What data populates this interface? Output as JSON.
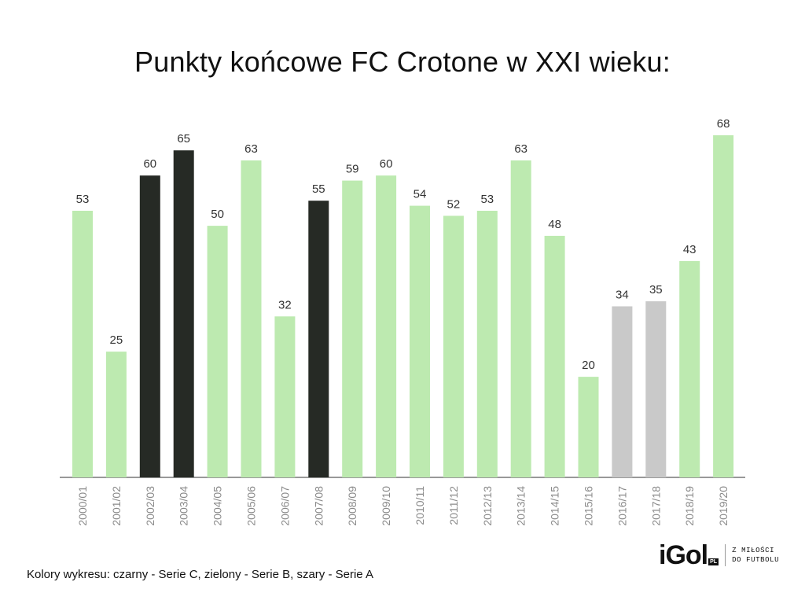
{
  "chart_data": {
    "type": "bar",
    "title": "Punkty końcowe FC Crotone w XXI wieku:",
    "xlabel": "",
    "ylabel": "",
    "ylim": [
      0,
      68
    ],
    "grid": false,
    "categories": [
      "2000/01",
      "2001/02",
      "2002/03",
      "2003/04",
      "2004/05",
      "2005/06",
      "2006/07",
      "2007/08",
      "2008/09",
      "2009/10",
      "2010/11",
      "2011/12",
      "2012/13",
      "2013/14",
      "2014/15",
      "2015/16",
      "2016/17",
      "2017/18",
      "2018/19",
      "2019/20"
    ],
    "values": [
      53,
      25,
      60,
      65,
      50,
      63,
      32,
      55,
      59,
      60,
      54,
      52,
      53,
      63,
      48,
      20,
      34,
      35,
      43,
      68
    ],
    "league": [
      "B",
      "B",
      "C",
      "C",
      "B",
      "B",
      "B",
      "C",
      "B",
      "B",
      "B",
      "B",
      "B",
      "B",
      "B",
      "B",
      "A",
      "A",
      "B",
      "B"
    ],
    "colors": {
      "C": "#262a25",
      "B": "#bdeab0",
      "A": "#c9c9c9",
      "axis": "#999999",
      "label": "#333333",
      "tick": "#8a8a8a"
    },
    "caption": "Kolory wykresu: czarny - Serie C, zielony - Serie B, szary - Serie A"
  },
  "logo": {
    "word": "iGol",
    "badge": "PL",
    "tagline_line1": "Z MIŁOŚCI",
    "tagline_line2": "DO FUTBOLU"
  }
}
